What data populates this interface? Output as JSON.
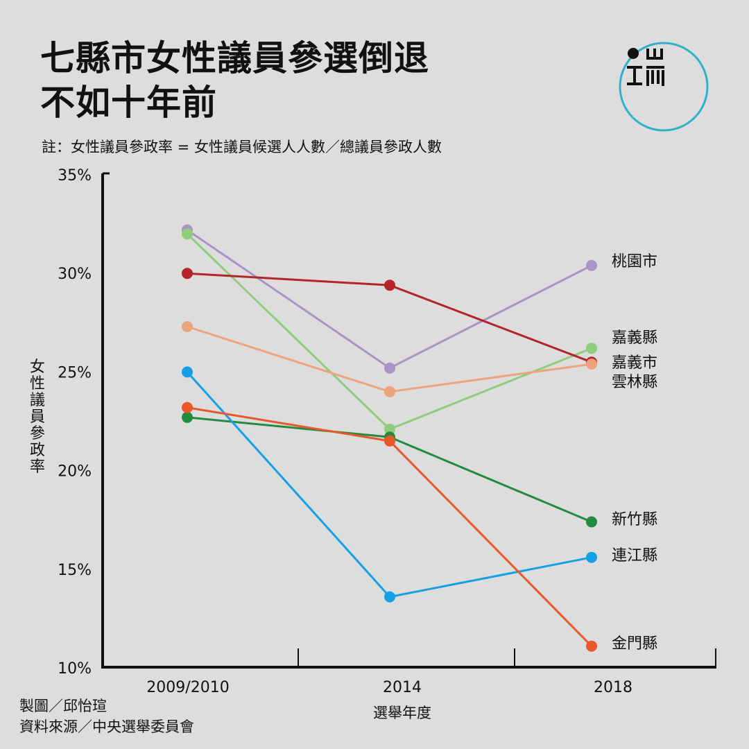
{
  "header": {
    "title_line1": "七縣市女性議員參選倒退",
    "title_line2": "不如十年前",
    "note": "註：女性議員參政率 = 女性議員候選人人數／總議員參政人數"
  },
  "credits": {
    "chart_by": "製圖／邱怡瑄",
    "source": "資料來源／中央選舉委員會"
  },
  "logo": {
    "text": "端"
  },
  "chart_data": {
    "type": "line",
    "title": "七縣市女性議員參選倒退不如十年前",
    "xlabel": "選舉年度",
    "ylabel": "女性議員參政率",
    "categories": [
      "2009/2010",
      "2014",
      "2018"
    ],
    "ylim": [
      10,
      35
    ],
    "yticks": [
      35,
      30,
      25,
      20,
      15,
      10
    ],
    "ytick_labels": [
      "35%",
      "30%",
      "25%",
      "20%",
      "15%",
      "10%"
    ],
    "series": [
      {
        "name": "桃園市",
        "color": "#a994c8",
        "values": [
          32.2,
          25.2,
          30.4
        ]
      },
      {
        "name": "嘉義縣",
        "color": "#8fcd7c",
        "values": [
          32.0,
          22.1,
          26.2
        ]
      },
      {
        "name": "嘉義市",
        "color": "#b5242a",
        "values": [
          30.0,
          29.4,
          25.5
        ]
      },
      {
        "name": "雲林縣",
        "color": "#eba47c",
        "values": [
          27.3,
          24.0,
          25.4
        ]
      },
      {
        "name": "新竹縣",
        "color": "#238b3e",
        "values": [
          22.7,
          21.7,
          17.4
        ]
      },
      {
        "name": "連江縣",
        "color": "#14a0e4",
        "values": [
          25.0,
          13.6,
          15.6
        ]
      },
      {
        "name": "金門縣",
        "color": "#e9572a",
        "values": [
          23.2,
          21.5,
          11.1
        ]
      }
    ]
  }
}
